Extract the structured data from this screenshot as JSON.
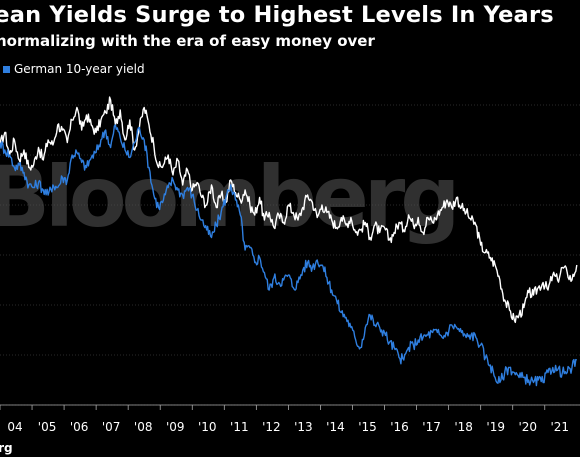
{
  "chart_data": {
    "type": "line",
    "title": "pean Yields Surge to Highest Levels In Years",
    "subtitle": " normalizing with the era of easy money over",
    "legend": [
      {
        "name": "German 10-year yield",
        "color": "#2f7fe0"
      }
    ],
    "watermark": "Bloomberg",
    "source": "erg",
    "x_tick_labels": [
      "04",
      "'05",
      "'06",
      "'07",
      "'08",
      "'09",
      "'10",
      "'11",
      "'12",
      "'13",
      "'14",
      "'15",
      "'16",
      "'17",
      "'18",
      "'19",
      "'20",
      "'21"
    ],
    "xlim": [
      2004.0,
      2022.1
    ],
    "ylim": [
      -1.0,
      5.5
    ],
    "series": [
      {
        "name": "",
        "color": "#ffffff",
        "x": [
          2004.0,
          2004.15,
          2004.3,
          2004.45,
          2004.6,
          2004.75,
          2004.9,
          2005.05,
          2005.2,
          2005.35,
          2005.5,
          2005.65,
          2005.8,
          2005.95,
          2006.1,
          2006.25,
          2006.4,
          2006.55,
          2006.7,
          2006.85,
          2007.0,
          2007.15,
          2007.3,
          2007.45,
          2007.6,
          2007.75,
          2007.9,
          2008.05,
          2008.2,
          2008.35,
          2008.5,
          2008.65,
          2008.8,
          2008.95,
          2009.1,
          2009.25,
          2009.4,
          2009.55,
          2009.7,
          2009.85,
          2010.0,
          2010.15,
          2010.3,
          2010.45,
          2010.6,
          2010.75,
          2010.9,
          2011.05,
          2011.2,
          2011.35,
          2011.5,
          2011.65,
          2011.8,
          2011.95,
          2012.1,
          2012.25,
          2012.4,
          2012.55,
          2012.7,
          2012.85,
          2013.0,
          2013.15,
          2013.3,
          2013.45,
          2013.6,
          2013.75,
          2013.9,
          2014.05,
          2014.2,
          2014.35,
          2014.5,
          2014.65,
          2014.8,
          2014.95,
          2015.1,
          2015.25,
          2015.4,
          2015.55,
          2015.7,
          2015.85,
          2016.0,
          2016.15,
          2016.3,
          2016.45,
          2016.6,
          2016.75,
          2016.9,
          2017.05,
          2017.2,
          2017.35,
          2017.5,
          2017.65,
          2017.8,
          2017.95,
          2018.1,
          2018.25,
          2018.4,
          2018.55,
          2018.7,
          2018.85,
          2019.0,
          2019.15,
          2019.3,
          2019.45,
          2019.6,
          2019.75,
          2019.9,
          2020.05,
          2020.2,
          2020.35,
          2020.5,
          2020.65,
          2020.8,
          2020.95,
          2021.1,
          2021.25,
          2021.4,
          2021.55,
          2021.7,
          2021.85,
          2022.0
        ],
        "y": [
          4.2,
          4.45,
          4.0,
          4.3,
          3.9,
          4.1,
          3.75,
          3.8,
          4.15,
          3.9,
          4.3,
          4.2,
          4.6,
          4.5,
          4.25,
          4.7,
          4.95,
          4.5,
          4.8,
          4.6,
          4.45,
          4.7,
          4.85,
          5.1,
          4.6,
          4.9,
          4.3,
          4.7,
          4.1,
          4.55,
          4.95,
          4.6,
          4.2,
          3.75,
          3.8,
          4.0,
          3.6,
          3.9,
          3.4,
          3.7,
          3.3,
          3.45,
          3.15,
          3.0,
          3.4,
          2.95,
          3.2,
          3.05,
          3.5,
          3.25,
          3.1,
          3.3,
          3.0,
          2.8,
          3.15,
          2.7,
          2.85,
          2.55,
          2.8,
          2.65,
          3.0,
          2.85,
          2.7,
          2.95,
          3.2,
          3.05,
          2.75,
          3.0,
          2.85,
          2.7,
          2.55,
          2.75,
          2.6,
          2.75,
          2.45,
          2.5,
          2.65,
          2.35,
          2.6,
          2.45,
          2.55,
          2.3,
          2.45,
          2.65,
          2.5,
          2.8,
          2.6,
          2.75,
          2.45,
          2.75,
          2.65,
          2.8,
          2.95,
          3.1,
          2.95,
          3.15,
          2.95,
          2.85,
          2.7,
          2.6,
          2.2,
          2.05,
          1.95,
          1.8,
          1.5,
          1.1,
          0.9,
          0.7,
          0.8,
          0.95,
          1.25,
          1.2,
          1.35,
          1.45,
          1.3,
          1.6,
          1.5,
          1.75,
          1.65,
          1.5,
          1.8
        ]
      },
      {
        "name": "German 10-year yield",
        "color": "#2f7fe0",
        "x": [
          2004.0,
          2004.15,
          2004.3,
          2004.45,
          2004.6,
          2004.75,
          2004.9,
          2005.05,
          2005.2,
          2005.35,
          2005.5,
          2005.65,
          2005.8,
          2005.95,
          2006.1,
          2006.25,
          2006.4,
          2006.55,
          2006.7,
          2006.85,
          2007.0,
          2007.15,
          2007.3,
          2007.45,
          2007.6,
          2007.75,
          2007.9,
          2008.05,
          2008.2,
          2008.35,
          2008.5,
          2008.65,
          2008.8,
          2008.95,
          2009.1,
          2009.25,
          2009.4,
          2009.55,
          2009.7,
          2009.85,
          2010.0,
          2010.15,
          2010.3,
          2010.45,
          2010.6,
          2010.75,
          2010.9,
          2011.05,
          2011.2,
          2011.35,
          2011.5,
          2011.65,
          2011.8,
          2011.95,
          2012.1,
          2012.25,
          2012.4,
          2012.55,
          2012.7,
          2012.85,
          2013.0,
          2013.15,
          2013.3,
          2013.45,
          2013.6,
          2013.75,
          2013.9,
          2014.05,
          2014.2,
          2014.35,
          2014.5,
          2014.65,
          2014.8,
          2014.95,
          2015.1,
          2015.25,
          2015.4,
          2015.55,
          2015.7,
          2015.85,
          2016.0,
          2016.15,
          2016.3,
          2016.45,
          2016.6,
          2016.75,
          2016.9,
          2017.05,
          2017.2,
          2017.35,
          2017.5,
          2017.65,
          2017.8,
          2017.95,
          2018.1,
          2018.25,
          2018.4,
          2018.55,
          2018.7,
          2018.85,
          2019.0,
          2019.15,
          2019.3,
          2019.45,
          2019.6,
          2019.75,
          2019.9,
          2020.05,
          2020.2,
          2020.35,
          2020.5,
          2020.65,
          2020.8,
          2020.95,
          2021.1,
          2021.25,
          2021.4,
          2021.55,
          2021.7,
          2021.85,
          2022.0
        ],
        "y": [
          4.25,
          4.1,
          4.0,
          3.75,
          3.8,
          3.65,
          3.4,
          3.35,
          3.45,
          3.3,
          3.2,
          3.4,
          3.35,
          3.55,
          3.5,
          4.0,
          4.05,
          3.85,
          3.75,
          3.95,
          4.05,
          4.3,
          4.5,
          4.15,
          4.6,
          4.35,
          4.1,
          3.95,
          4.25,
          4.55,
          4.3,
          3.75,
          3.2,
          2.95,
          3.1,
          3.35,
          3.5,
          3.3,
          3.2,
          3.35,
          3.2,
          2.9,
          2.7,
          2.5,
          2.35,
          2.6,
          2.85,
          3.15,
          3.4,
          3.1,
          2.8,
          2.1,
          2.15,
          1.85,
          1.95,
          1.65,
          1.3,
          1.55,
          1.45,
          1.5,
          1.6,
          1.35,
          1.45,
          1.7,
          1.85,
          1.75,
          1.9,
          1.8,
          1.55,
          1.3,
          1.1,
          0.85,
          0.75,
          0.55,
          0.3,
          0.15,
          0.55,
          0.8,
          0.6,
          0.55,
          0.45,
          0.25,
          0.15,
          -0.05,
          -0.1,
          0.15,
          0.2,
          0.3,
          0.35,
          0.4,
          0.45,
          0.45,
          0.35,
          0.45,
          0.6,
          0.55,
          0.45,
          0.35,
          0.4,
          0.35,
          0.2,
          -0.05,
          -0.2,
          -0.45,
          -0.55,
          -0.35,
          -0.25,
          -0.35,
          -0.45,
          -0.45,
          -0.5,
          -0.55,
          -0.5,
          -0.55,
          -0.35,
          -0.25,
          -0.3,
          -0.35,
          -0.35,
          -0.25,
          -0.1
        ]
      }
    ]
  }
}
